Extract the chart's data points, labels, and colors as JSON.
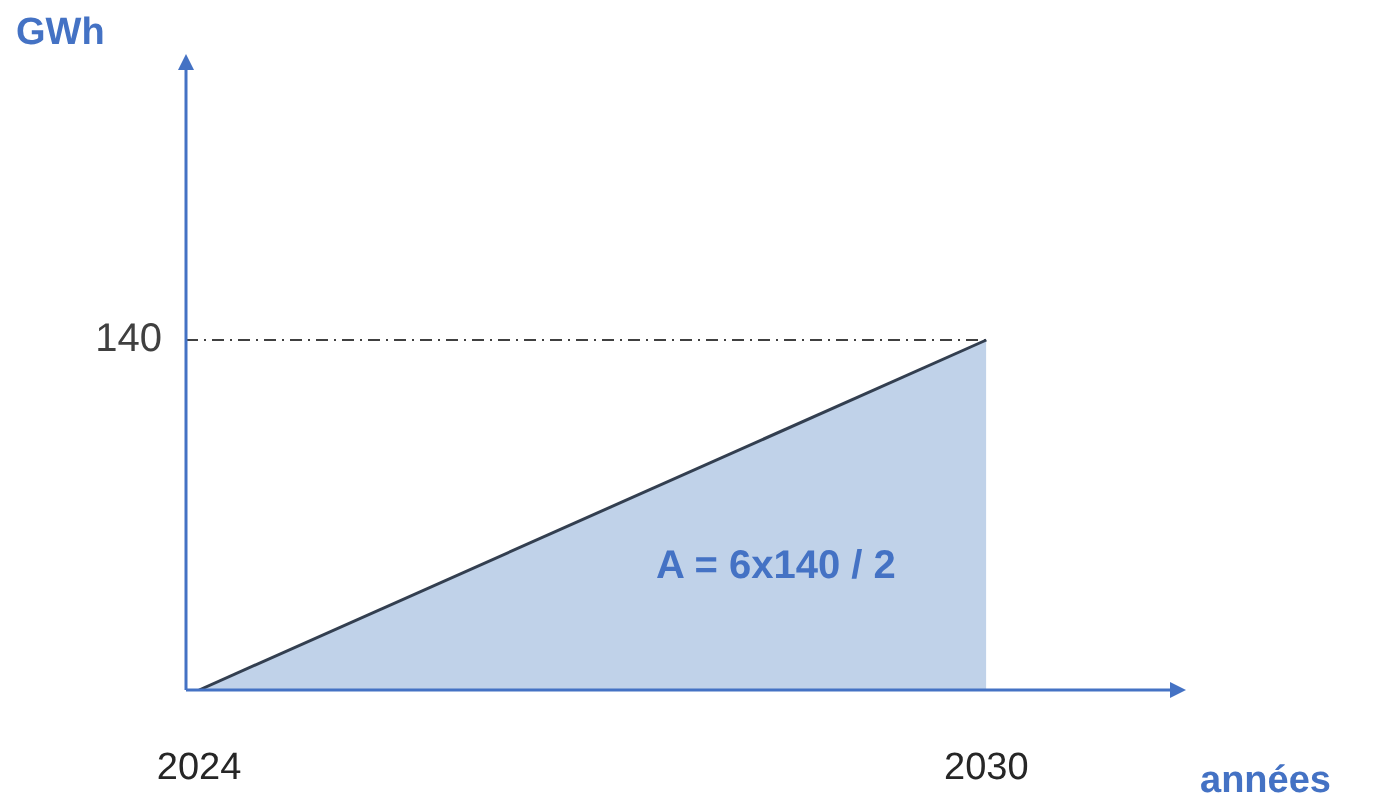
{
  "chart_data": {
    "type": "area",
    "xlabel": "années",
    "ylabel": "GWh",
    "annotations": [
      "A = 6x140 / 2"
    ],
    "x": [
      2024,
      2030
    ],
    "values": [
      0,
      140
    ],
    "color": "#4a7fc1",
    "xlim": [
      2023.9,
      2031.4
    ],
    "ylim": [
      0,
      248
    ],
    "xticks": [
      2024,
      2030
    ],
    "yticks": [
      140
    ],
    "ref_lines": [
      {
        "axis": "y",
        "value": 140,
        "color": "#404040",
        "line_style": "dashed"
      }
    ]
  }
}
